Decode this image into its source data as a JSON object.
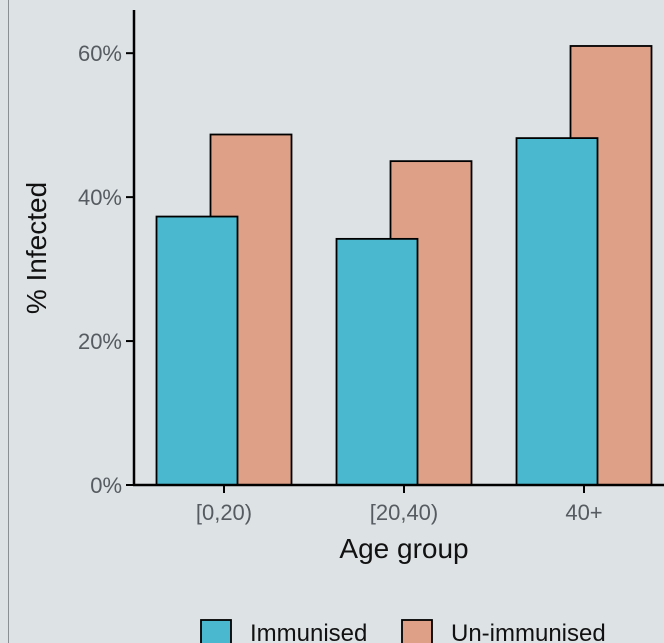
{
  "chart_data": {
    "type": "bar",
    "xlabel": "Age group",
    "ylabel": "% Infected",
    "categories": [
      "[0,20)",
      "[20,40)",
      "40+"
    ],
    "series": [
      {
        "name": "Immunised",
        "values": [
          37.3,
          34.2,
          48.2
        ],
        "color": "#4ab9cf"
      },
      {
        "name": "Un-immunised",
        "values": [
          48.7,
          45.0,
          61.0
        ],
        "color": "#dea087"
      }
    ],
    "ylim": [
      0,
      66
    ],
    "yticks": [
      0,
      20,
      40,
      60
    ],
    "ytick_labels": [
      "0%",
      "20%",
      "40%",
      "60%"
    ],
    "grid": false,
    "legend_position": "bottom"
  }
}
